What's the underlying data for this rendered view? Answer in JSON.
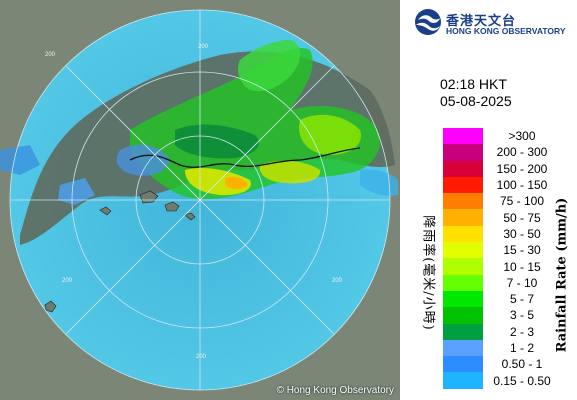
{
  "map": {
    "copyright": "© Hong Kong Observatory",
    "range_labels": [
      "200",
      "200",
      "200",
      "200",
      "200"
    ],
    "colors": {
      "land": "#7a8476",
      "sea": "#40c8e8",
      "rings": "#bfe4f0"
    }
  },
  "branding": {
    "name_cn": "香港天文台",
    "name_en": "HONG KONG OBSERVATORY",
    "logo_icon": "hko-logo-icon",
    "brand_color": "#1a3f8a"
  },
  "timestamp": {
    "time": "02:18 HKT",
    "date": "05-08-2025"
  },
  "legend": {
    "title_en": "Rainfall Rate (mm/h)",
    "title_cn": "降雨率(毫米/小時)",
    "items": [
      {
        "label": ">300",
        "color": "#ff00ff"
      },
      {
        "label": "200 - 300",
        "color": "#c8007d"
      },
      {
        "label": "150 - 200",
        "color": "#d7003a"
      },
      {
        "label": "100 - 150",
        "color": "#ff1a00"
      },
      {
        "label": "75 - 100",
        "color": "#ff7d00"
      },
      {
        "label": "50 - 75",
        "color": "#ffb000"
      },
      {
        "label": "30 - 50",
        "color": "#ffe100"
      },
      {
        "label": "15 - 30",
        "color": "#e1ff00"
      },
      {
        "label": "10 - 15",
        "color": "#b0ff00"
      },
      {
        "label": "7 - 10",
        "color": "#64ff00"
      },
      {
        "label": "5 - 7",
        "color": "#00e800"
      },
      {
        "label": "3 - 5",
        "color": "#00c200"
      },
      {
        "label": "2 - 3",
        "color": "#00a040"
      },
      {
        "label": "1 - 2",
        "color": "#5aa0ff"
      },
      {
        "label": "0.50 - 1",
        "color": "#2d8cff"
      },
      {
        "label": "0.15 - 0.50",
        "color": "#1eb4ff"
      }
    ]
  }
}
